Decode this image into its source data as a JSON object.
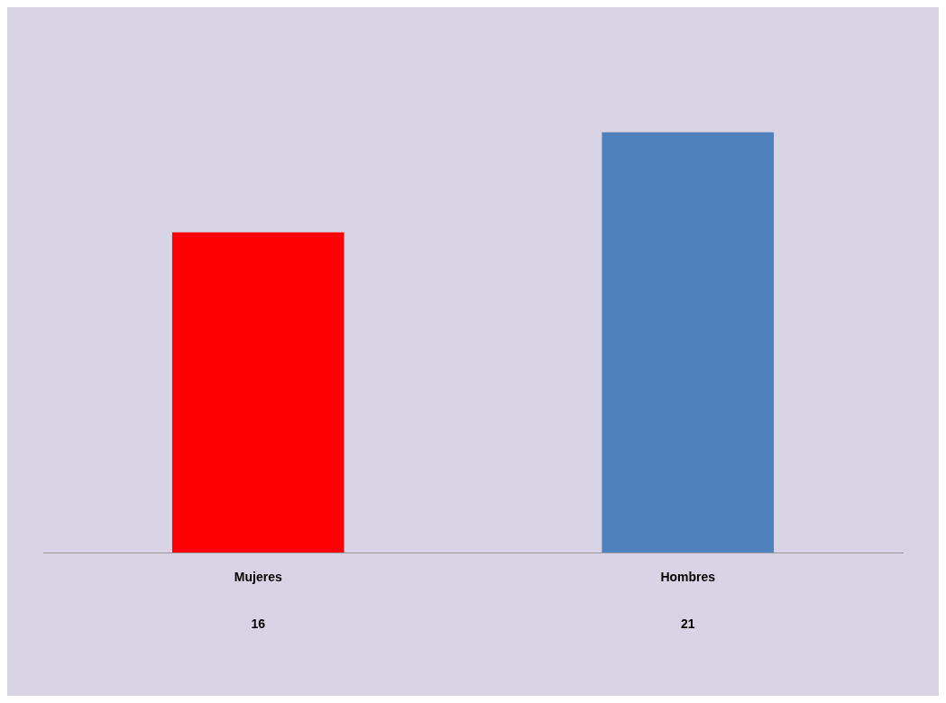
{
  "chart_data": {
    "type": "bar",
    "categories": [
      "Mujeres",
      "Hombres"
    ],
    "values": [
      16,
      21
    ],
    "colors": [
      "#ff0000",
      "#4f81bd"
    ],
    "data_labels": true,
    "grid": false,
    "legend": false
  }
}
